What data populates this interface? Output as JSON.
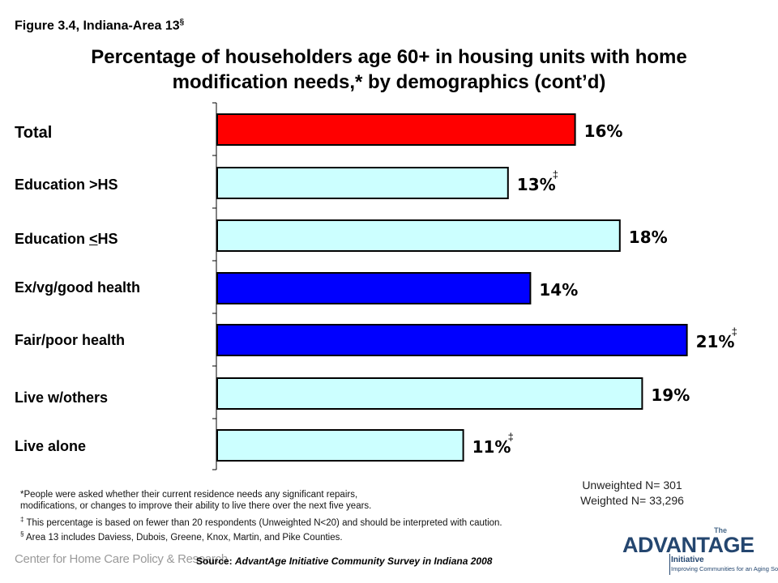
{
  "figure_label": {
    "text": "Figure 3.4, Indiana-Area 13",
    "mark": "§"
  },
  "title": "Percentage of householders age 60+ in housing units with home modification needs,* by demographics (cont’d)",
  "colors": {
    "total": "#ff0000",
    "education": "#ccffff",
    "health": "#0000ff",
    "living": "#ccffff",
    "border": "#000000"
  },
  "chart_data": {
    "type": "bar",
    "orientation": "horizontal",
    "title": "Percentage of householders age 60+ in housing units with home modification needs,* by demographics (cont’d)",
    "xlim": [
      0,
      22
    ],
    "grid": false,
    "categories": [
      "Total",
      "Education >HS",
      "Education <HS",
      "Ex/vg/good health",
      "Fair/poor health",
      "Live w/others",
      "Live alone"
    ],
    "category_prefix": [
      "Total",
      "Education >HS",
      "Education ",
      "Ex/vg/good health",
      "Fair/poor health",
      "Live w/others",
      "Live alone"
    ],
    "category_underlined": [
      "",
      "",
      "<",
      "",
      "",
      "",
      ""
    ],
    "category_suffix": [
      "",
      "",
      "HS",
      "",
      "",
      "",
      ""
    ],
    "values": [
      16,
      13,
      18,
      14,
      21,
      19,
      11
    ],
    "value_labels": [
      "16%",
      "13%",
      "18%",
      "14%",
      "21%",
      "19%",
      "11%"
    ],
    "caution_marks": [
      "",
      "‡",
      "",
      "",
      "‡",
      "",
      "‡"
    ],
    "bar_colors": [
      "#ff0000",
      "#ccffff",
      "#ccffff",
      "#0000ff",
      "#0000ff",
      "#ccffff",
      "#ccffff"
    ]
  },
  "sample": {
    "unweighted": "Unweighted N= 301",
    "weighted": "Weighted N= 33,296"
  },
  "notes": {
    "asterisk_line1": "*People were asked whether their current residence needs any significant repairs,",
    "asterisk_line2": "modifications, or changes to improve their ability to live there over the next five years.",
    "dagger_mark": "‡",
    "dagger_text": " This percentage is based on fewer than 20 respondents (Unweighted N<20) and should be interpreted with caution.",
    "section_mark": "§",
    "section_text": "Area 13 includes Daviess, Dubois, Greene, Knox, Martin, and Pike Counties."
  },
  "source": {
    "label": "Source: ",
    "text": "AdvantAge Initiative Community Survey in Indiana 2008"
  },
  "logos": {
    "center": "Center for Home Care Policy & Research",
    "advantage_the": "The",
    "advantage_name": "ADVANTAGE",
    "advantage_initiative": "Initiative",
    "advantage_tagline": "Improving Communities for an Aging Society"
  }
}
